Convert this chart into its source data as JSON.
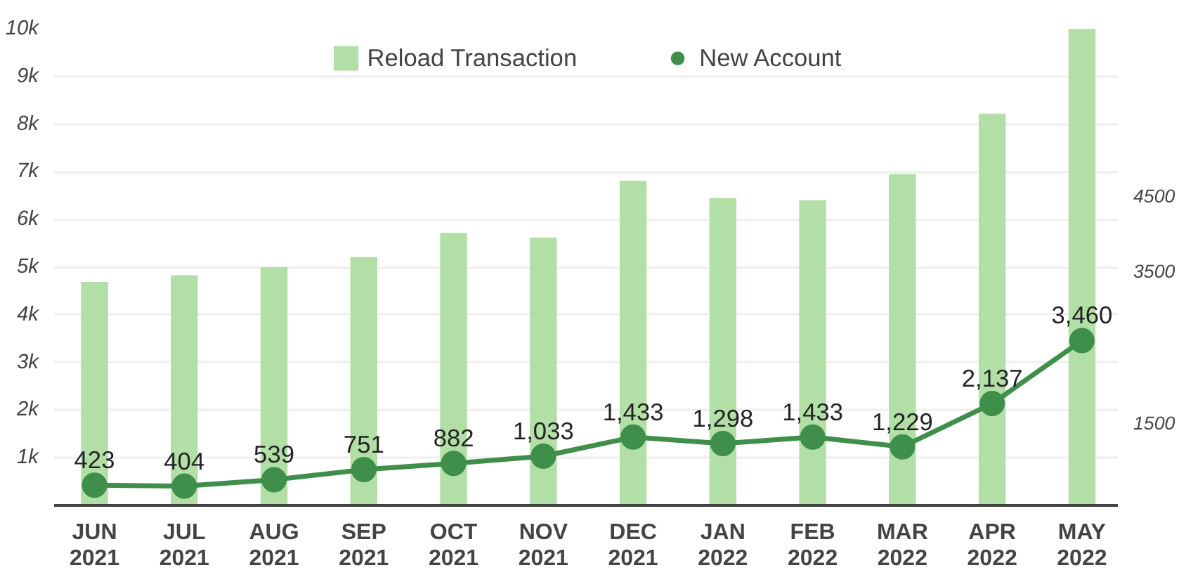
{
  "chart_data": {
    "type": "bar",
    "categories": [
      "JUN 2021",
      "JUL 2021",
      "AUG 2021",
      "SEP 2021",
      "OCT 2021",
      "NOV 2021",
      "DEC 2021",
      "JAN 2022",
      "FEB 2022",
      "MAR 2022",
      "APR 2022",
      "MAY 2022"
    ],
    "series": [
      {
        "name": "Reload Transaction",
        "color": "#b2dfa5",
        "values": [
          4690,
          4830,
          5000,
          5210,
          5720,
          5620,
          6810,
          6450,
          6400,
          6950,
          8220,
          10000
        ]
      },
      {
        "name": "New Account",
        "type": "line",
        "color": "#3f8f4a",
        "marker": "circle",
        "data_labels": true,
        "value_labels": [
          "423",
          "404",
          "539",
          "751",
          "882",
          "1,033",
          "1,433",
          "1,298",
          "1,433",
          "1,229",
          "2,137",
          "3,460"
        ],
        "values": [
          423,
          404,
          539,
          751,
          882,
          1033,
          1433,
          1298,
          1433,
          1229,
          2137,
          3460
        ]
      }
    ],
    "ylim": [
      0,
      10000
    ],
    "yticks": [
      {
        "value": 1000,
        "label": "1k"
      },
      {
        "value": 2000,
        "label": "2k"
      },
      {
        "value": 3000,
        "label": "3k"
      },
      {
        "value": 4000,
        "label": "4k"
      },
      {
        "value": 5000,
        "label": "5k"
      },
      {
        "value": 6000,
        "label": "6k"
      },
      {
        "value": 7000,
        "label": "7k"
      },
      {
        "value": 8000,
        "label": "8k"
      },
      {
        "value": 9000,
        "label": "9k"
      },
      {
        "value": 10000,
        "label": "10k"
      }
    ],
    "y2lim": [
      400,
      6700
    ],
    "y2ticks": [
      1500,
      3500,
      4500
    ],
    "grid": "y",
    "legend": "top"
  }
}
